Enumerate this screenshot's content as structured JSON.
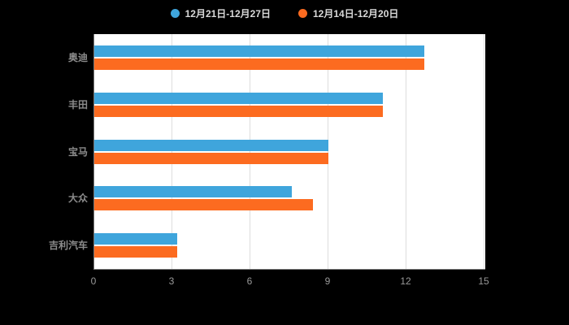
{
  "legend": {
    "items": [
      {
        "label": "12月21日-12月27日",
        "color": "#3fa5dc"
      },
      {
        "label": "12月14日-12月20日",
        "color": "#fc6b20"
      }
    ]
  },
  "chart_data": {
    "type": "bar",
    "orientation": "horizontal",
    "title": "",
    "xlabel": "",
    "ylabel": "",
    "categories": [
      "奥迪",
      "丰田",
      "宝马",
      "大众",
      "吉利汽车"
    ],
    "series": [
      {
        "name": "12月21日-12月27日",
        "color": "#3fa5dc",
        "values": [
          12.7,
          11.1,
          9.0,
          7.6,
          3.2
        ]
      },
      {
        "name": "12月14日-12月20日",
        "color": "#fc6b20",
        "values": [
          12.7,
          11.1,
          9.0,
          8.4,
          3.2
        ]
      }
    ],
    "xlim": [
      0,
      15
    ],
    "xticks": [
      0,
      3,
      6,
      9,
      12,
      15
    ],
    "grid": true,
    "legend_position": "top"
  },
  "colors": {
    "background": "#000000",
    "plot_background": "#ffffff",
    "gridline": "#dddddd",
    "axis_line": "#777777",
    "category_label": "#8c8c8c",
    "tick_label": "#999999",
    "legend_text": "#d9d9d9"
  }
}
